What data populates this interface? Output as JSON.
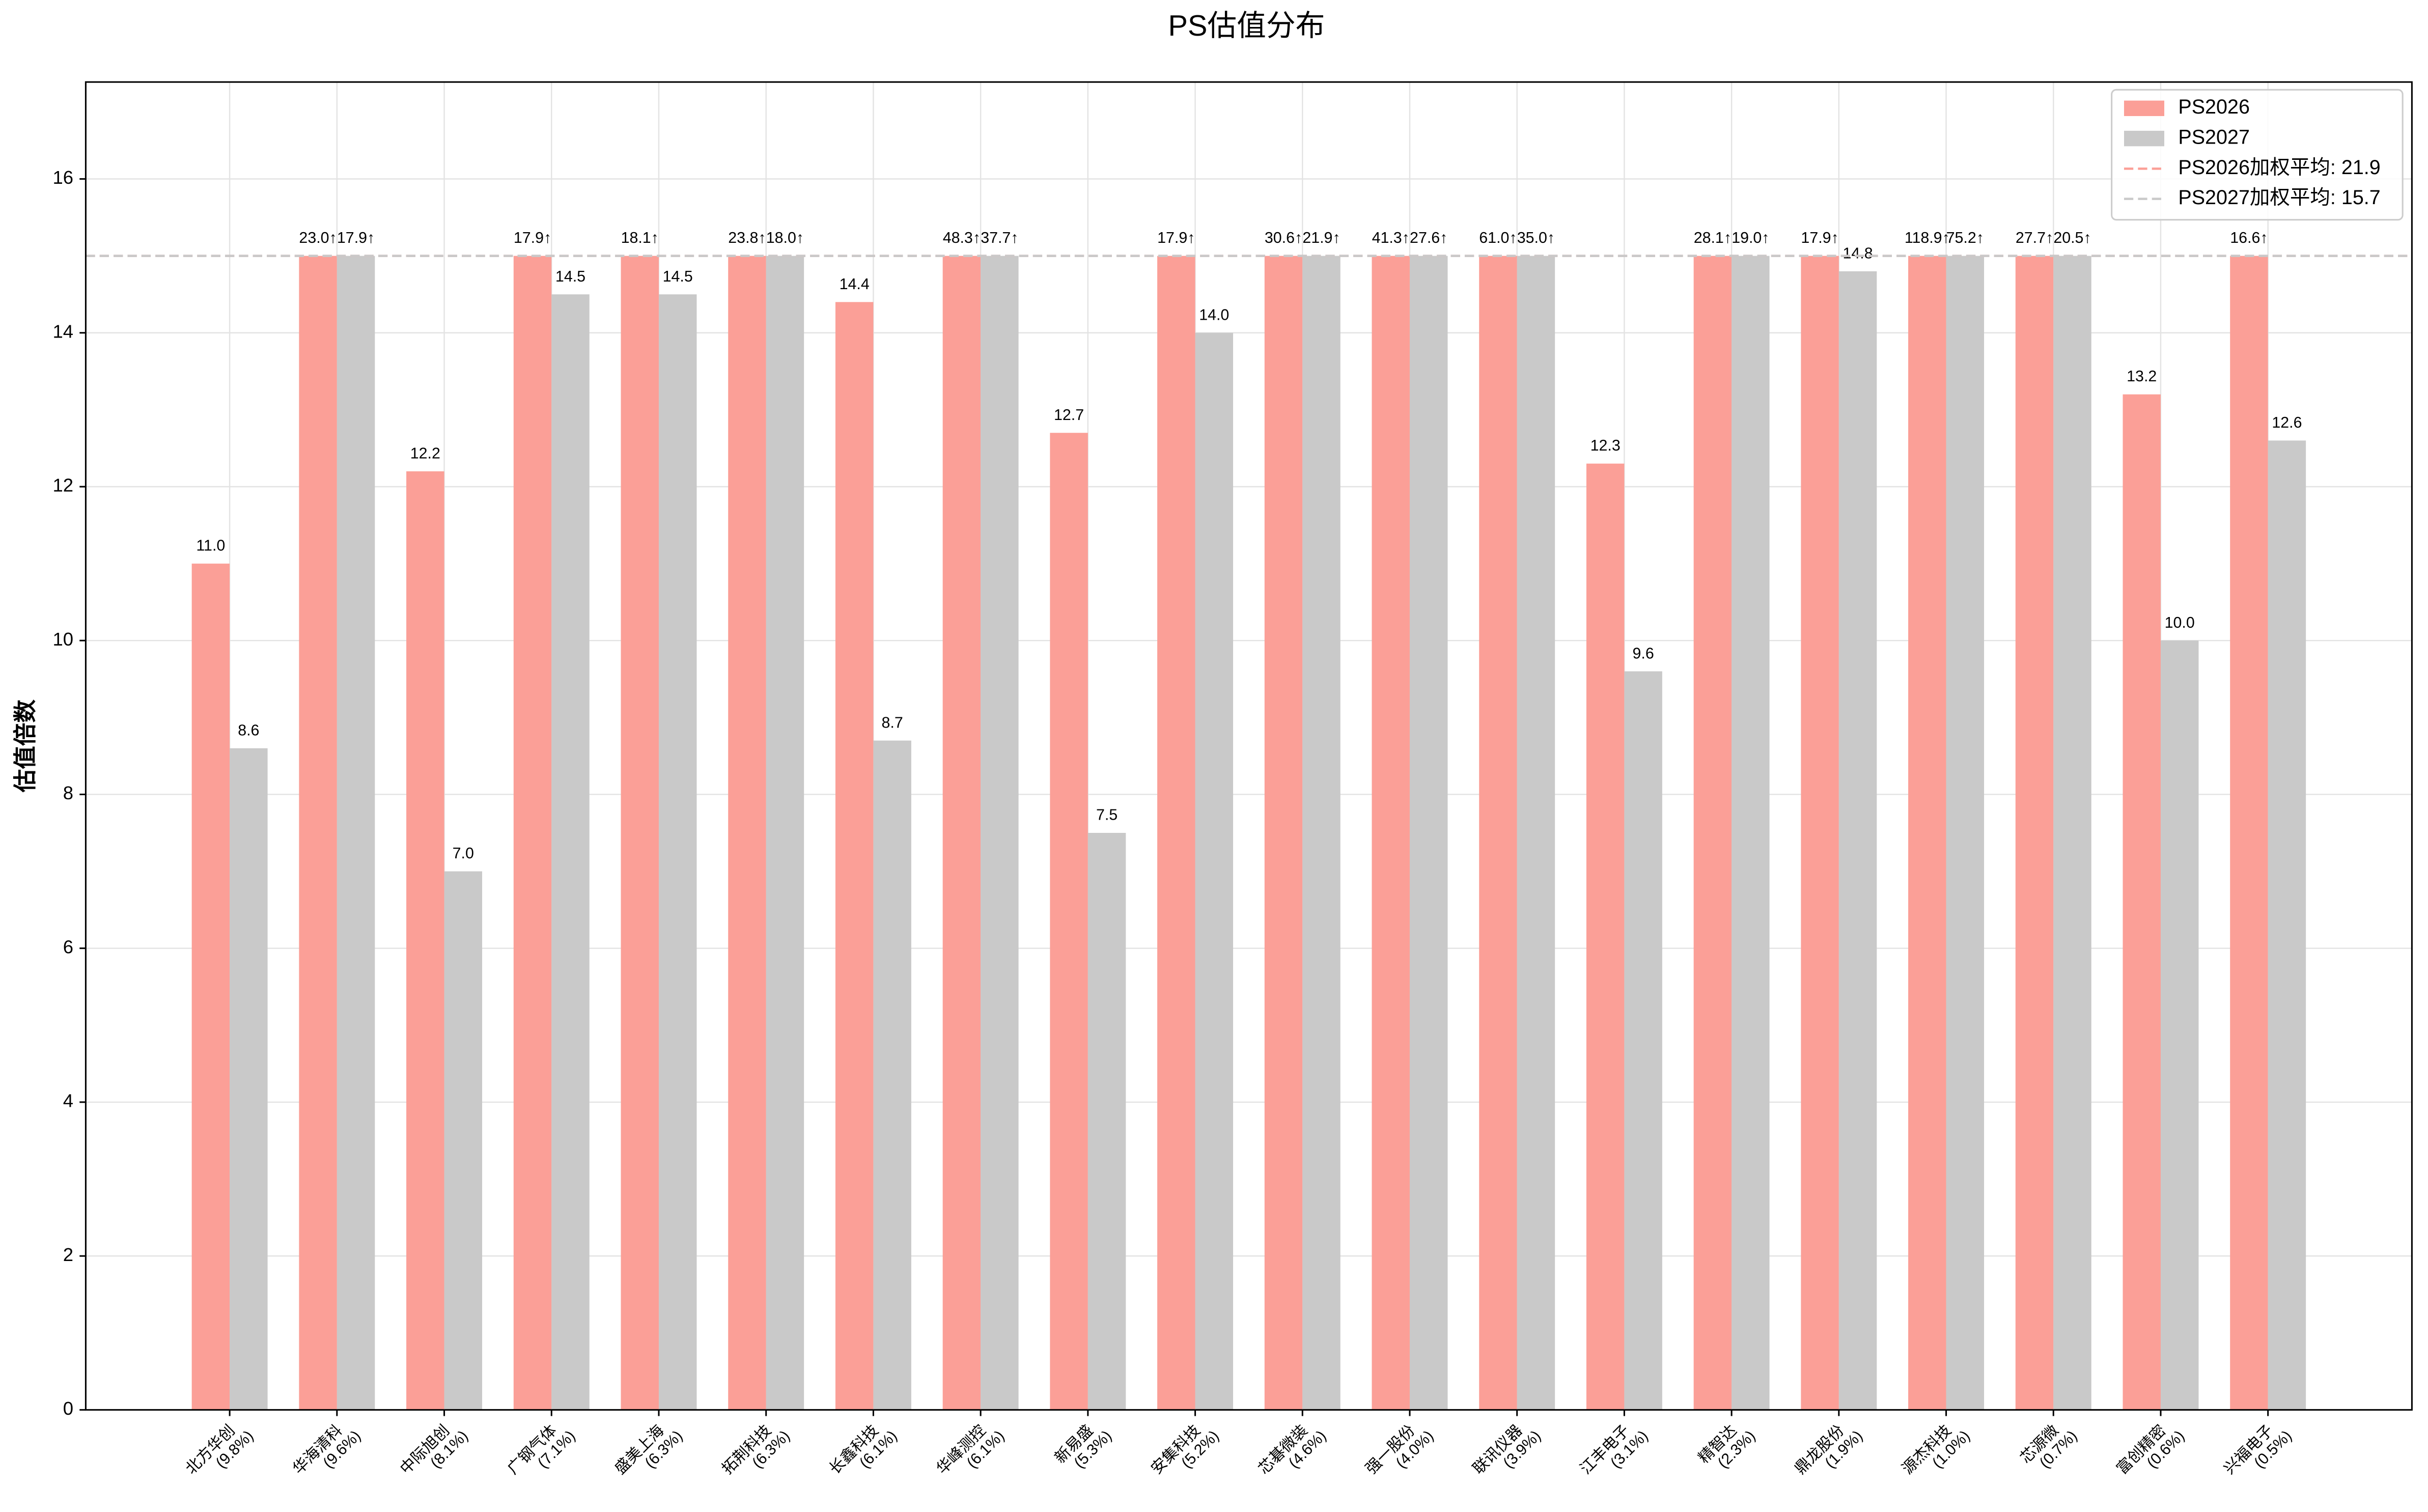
{
  "chart_data": {
    "type": "bar",
    "title": "PS估值分布",
    "y_label": "估值倍数",
    "categories": [
      "北方华创",
      "华海清科",
      "中际旭创",
      "广钢气体",
      "盛美上海",
      "拓荆科技",
      "长鑫科技",
      "华峰测控",
      "新易盛",
      "安集科技",
      "芯碁微装",
      "强一股份",
      "联讯仪器",
      "江丰电子",
      "精智达",
      "鼎龙股份",
      "源杰科技",
      "芯源微",
      "富创精密",
      "兴福电子"
    ],
    "category_weights": [
      "(9.8%)",
      "(9.6%)",
      "(8.1%)",
      "(7.1%)",
      "(6.3%)",
      "(6.3%)",
      "(6.1%)",
      "(6.1%)",
      "(5.3%)",
      "(5.2%)",
      "(4.6%)",
      "(4.0%)",
      "(3.9%)",
      "(3.1%)",
      "(2.3%)",
      "(1.9%)",
      "(1.0%)",
      "(0.7%)",
      "(0.6%)",
      "(0.5%)"
    ],
    "cap": 15,
    "series": [
      {
        "name": "PS2026",
        "color": "#fb9f97",
        "values": [
          11.0,
          23.0,
          12.2,
          17.9,
          18.1,
          23.8,
          14.4,
          48.3,
          12.7,
          17.9,
          30.6,
          41.3,
          61.0,
          12.3,
          28.1,
          17.9,
          118.9,
          27.7,
          13.2,
          16.6
        ],
        "value_labels": [
          "11.0",
          "23.0↑",
          "12.2",
          "17.9↑",
          "18.1↑",
          "23.8↑",
          "14.4",
          "48.3↑",
          "12.7",
          "17.9↑",
          "30.6↑",
          "41.3↑",
          "61.0↑",
          "12.3",
          "28.1↑",
          "17.9↑",
          "118.9↑",
          "27.7↑",
          "13.2",
          "16.6↑"
        ],
        "average": 21.9,
        "average_label": "PS2026加权平均: 21.9"
      },
      {
        "name": "PS2027",
        "color": "#c9c9c9",
        "values": [
          8.6,
          17.9,
          7.0,
          14.5,
          14.5,
          18.0,
          8.7,
          37.7,
          7.5,
          14.0,
          21.9,
          27.6,
          35.0,
          9.6,
          19.0,
          14.8,
          75.2,
          20.5,
          10.0,
          12.6
        ],
        "value_labels": [
          "8.6",
          "17.9↑",
          "7.0",
          "14.5",
          "14.5",
          "18.0↑",
          "8.7",
          "37.7↑",
          "7.5",
          "14.0",
          "21.9↑",
          "27.6↑",
          "35.0↑",
          "9.6",
          "19.0↑",
          "14.8",
          "75.2↑",
          "20.5↑",
          "10.0",
          "12.6"
        ],
        "average": 15.7,
        "average_label": "PS2027加权平均: 15.7"
      }
    ],
    "ylim": [
      0,
      17.26
    ],
    "yticks": [
      0,
      2,
      4,
      6,
      8,
      10,
      12,
      14,
      16
    ],
    "grid": true,
    "legend": "upper right"
  }
}
